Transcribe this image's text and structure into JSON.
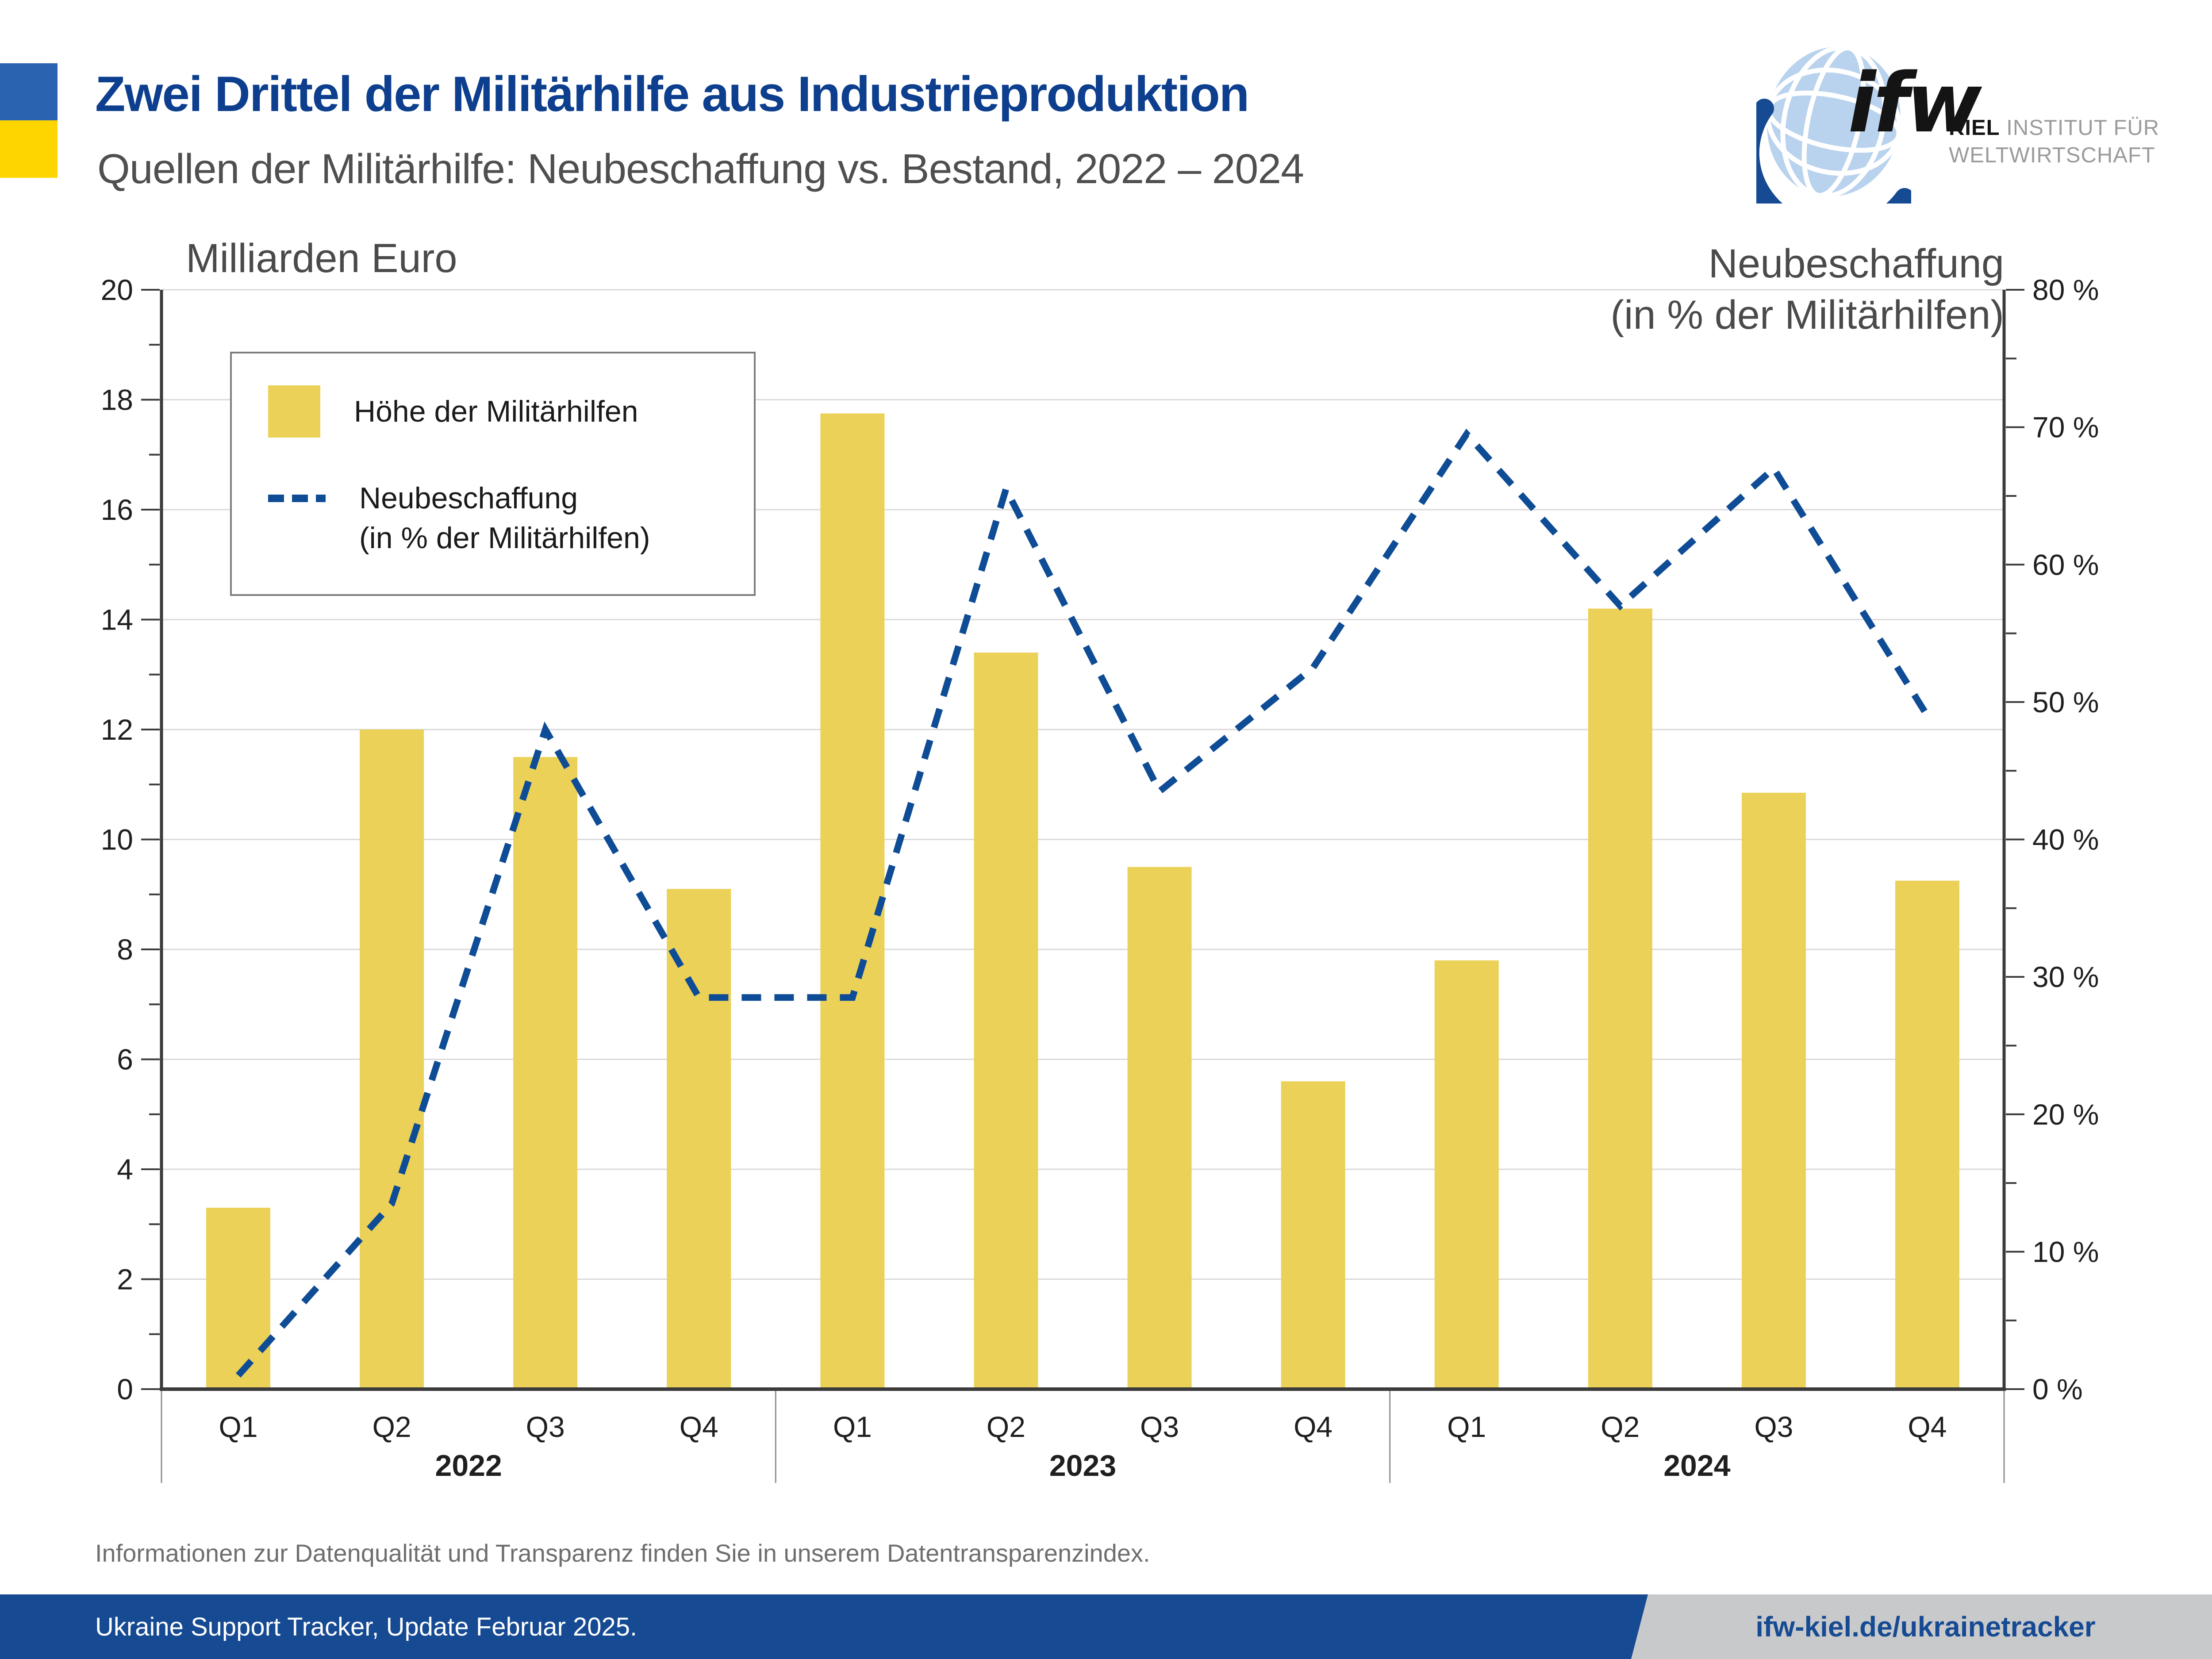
{
  "header": {
    "title": "Zwei Drittel der Militärhilfe aus Industrieproduktion",
    "subtitle": "Quellen der Militärhilfe: Neubeschaffung vs. Bestand, 2022 – 2024",
    "logo": {
      "ifw": "ifw",
      "kiel": "KIEL",
      "line1_rest": "INSTITUT FÜR",
      "line2": "WELTWIRTSCHAFT"
    }
  },
  "chart_data": {
    "type": "bar",
    "categories": [
      "Q1",
      "Q2",
      "Q3",
      "Q4",
      "Q1",
      "Q2",
      "Q3",
      "Q4",
      "Q1",
      "Q2",
      "Q3",
      "Q4"
    ],
    "year_groups": [
      {
        "label": "2022",
        "quarters": 4
      },
      {
        "label": "2023",
        "quarters": 4
      },
      {
        "label": "2024",
        "quarters": 4
      }
    ],
    "series": [
      {
        "name": "Höhe der Militärhilfen",
        "type": "bar",
        "axis": "left",
        "unit": "Milliarden Euro",
        "values": [
          3.3,
          12.0,
          11.5,
          9.1,
          17.75,
          13.4,
          9.5,
          5.6,
          7.8,
          14.2,
          10.85,
          9.25
        ]
      },
      {
        "name": "Neubeschaffung (in % der Militärhilfen)",
        "type": "dashed-line",
        "axis": "right",
        "unit": "%",
        "values": [
          1,
          13.5,
          48,
          28.5,
          28.5,
          65.5,
          43.5,
          52.5,
          69.5,
          57,
          67,
          49
        ]
      }
    ],
    "left_axis": {
      "title": "Milliarden Euro",
      "min": 0,
      "max": 20,
      "tick_step": 2,
      "minor_step": 1,
      "tick_labels": [
        "0",
        "2",
        "4",
        "6",
        "8",
        "10",
        "12",
        "14",
        "16",
        "18",
        "20"
      ]
    },
    "right_axis": {
      "title_line1": "Neubeschaffung",
      "title_line2": "(in % der Militärhilfen)",
      "min": 0,
      "max": 80,
      "tick_step": 10,
      "minor_step": 5,
      "tick_labels": [
        "0 %",
        "10 %",
        "20 %",
        "30 %",
        "40 %",
        "50 %",
        "60 %",
        "70 %",
        "80 %"
      ]
    },
    "grid": true,
    "legend_position": "top-left"
  },
  "legend": {
    "item_bar": "Höhe der Militärhilfen",
    "item_line_1": "Neubeschaffung",
    "item_line_2": "(in % der Militärhilfen)"
  },
  "footer": {
    "note": "Informationen zur Datenqualität und Transparenz finden Sie in unserem Datentransparenzindex.",
    "source": "Ukraine Support Tracker, Update Februar 2025.",
    "url": "ifw-kiel.de/ukrainetracker"
  },
  "colors": {
    "bar_yellow": "#EBD158",
    "line_blue": "#0F4C96",
    "title_blue": "#0D3F8E",
    "subtitle_gray": "#4F4F4F",
    "flag_blue": "#2A63B0",
    "flag_yellow": "#FFD500",
    "footer_blue": "#164A93",
    "url_band_gray": "#C8C9CA",
    "grid_gray": "#DADADA",
    "axis_dark": "#3B3B3B",
    "tick_label": "#1F1F1F",
    "globe_light_blue": "#B9D2EE",
    "logo_gray": "#9B9B9B"
  }
}
